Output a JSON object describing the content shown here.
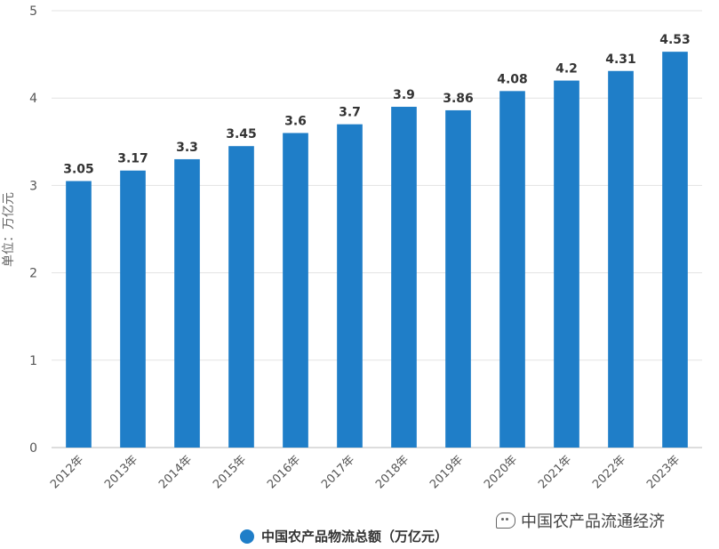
{
  "chart_data": {
    "type": "bar",
    "categories": [
      "2012年",
      "2013年",
      "2014年",
      "2015年",
      "2016年",
      "2017年",
      "2018年",
      "2019年",
      "2020年",
      "2021年",
      "2022年",
      "2023年"
    ],
    "series": [
      {
        "name": "中国农产品物流总额（万亿元）",
        "values": [
          3.05,
          3.17,
          3.3,
          3.45,
          3.6,
          3.7,
          3.9,
          3.86,
          4.08,
          4.2,
          4.31,
          4.53
        ],
        "labels": [
          "3.05",
          "3.17",
          "3.3",
          "3.45",
          "3.6",
          "3.7",
          "3.9",
          "3.86",
          "4.08",
          "4.2",
          "4.31",
          "4.53"
        ],
        "color": "#1f7ec8"
      }
    ],
    "ylabel": "单位：万亿元",
    "ylim": [
      0,
      5
    ],
    "yticks": [
      "0",
      "1",
      "2",
      "3",
      "4",
      "5"
    ],
    "grid": true,
    "legend_position": "bottom"
  },
  "legend": {
    "label": "中国农产品物流总额（万亿元）"
  },
  "watermark": {
    "text": "中国农产品流通经济"
  }
}
